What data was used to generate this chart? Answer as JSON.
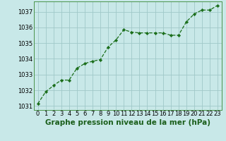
{
  "x": [
    0,
    1,
    2,
    3,
    4,
    5,
    6,
    7,
    8,
    9,
    10,
    11,
    12,
    13,
    14,
    15,
    16,
    17,
    18,
    19,
    20,
    21,
    22,
    23
  ],
  "y": [
    1031.15,
    1031.9,
    1032.3,
    1032.65,
    1032.65,
    1033.4,
    1033.7,
    1033.85,
    1033.95,
    1034.75,
    1035.2,
    1035.85,
    1035.7,
    1035.65,
    1035.65,
    1035.65,
    1035.65,
    1035.5,
    1035.5,
    1036.35,
    1036.85,
    1037.1,
    1037.1,
    1037.4
  ],
  "line_color": "#1a6e1a",
  "marker": "D",
  "marker_size": 2.2,
  "bg_color": "#c8e8e8",
  "grid_color": "#a0c8c8",
  "title": "Graphe pression niveau de la mer (hPa)",
  "title_color": "#1a5e1a",
  "title_fontsize": 7.5,
  "xlabel_ticks": [
    "0",
    "1",
    "2",
    "3",
    "4",
    "5",
    "6",
    "7",
    "8",
    "9",
    "10",
    "11",
    "12",
    "13",
    "14",
    "15",
    "16",
    "17",
    "18",
    "19",
    "20",
    "21",
    "22",
    "23"
  ],
  "ylim": [
    1030.75,
    1037.65
  ],
  "yticks": [
    1031,
    1032,
    1033,
    1034,
    1035,
    1036,
    1037
  ],
  "tick_fontsize": 6.0,
  "line_width": 0.9
}
